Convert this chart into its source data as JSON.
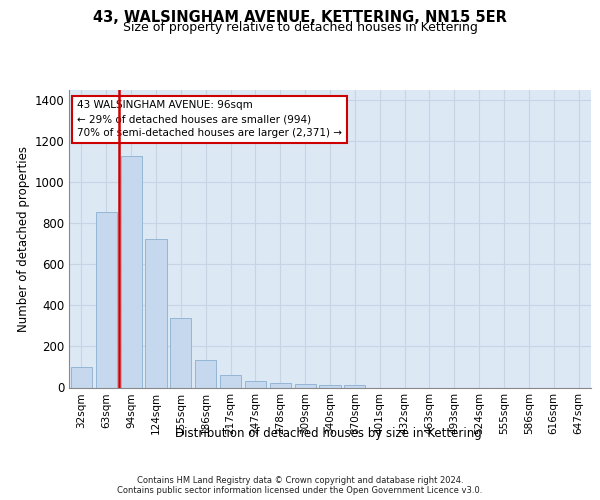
{
  "title": "43, WALSINGHAM AVENUE, KETTERING, NN15 5ER",
  "subtitle": "Size of property relative to detached houses in Kettering",
  "xlabel": "Distribution of detached houses by size in Kettering",
  "ylabel": "Number of detached properties",
  "categories": [
    "32sqm",
    "63sqm",
    "94sqm",
    "124sqm",
    "155sqm",
    "186sqm",
    "217sqm",
    "247sqm",
    "278sqm",
    "309sqm",
    "340sqm",
    "370sqm",
    "401sqm",
    "432sqm",
    "463sqm",
    "493sqm",
    "524sqm",
    "555sqm",
    "586sqm",
    "616sqm",
    "647sqm"
  ],
  "values": [
    100,
    855,
    1130,
    725,
    340,
    135,
    60,
    32,
    20,
    18,
    10,
    10,
    0,
    0,
    0,
    0,
    0,
    0,
    0,
    0,
    0
  ],
  "bar_color": "#c5d8ee",
  "bar_edgecolor": "#8ab0d0",
  "property_line_color": "#cc0000",
  "property_line_x": 1.5,
  "annotation_text": "43 WALSINGHAM AVENUE: 96sqm\n← 29% of detached houses are smaller (994)\n70% of semi-detached houses are larger (2,371) →",
  "annotation_box_edgecolor": "#cc0000",
  "ylim_max": 1450,
  "yticks": [
    0,
    200,
    400,
    600,
    800,
    1000,
    1200,
    1400
  ],
  "grid_color": "#c8d4e4",
  "background_color": "#dde8f5",
  "footer_line1": "Contains HM Land Registry data © Crown copyright and database right 2024.",
  "footer_line2": "Contains public sector information licensed under the Open Government Licence v3.0."
}
